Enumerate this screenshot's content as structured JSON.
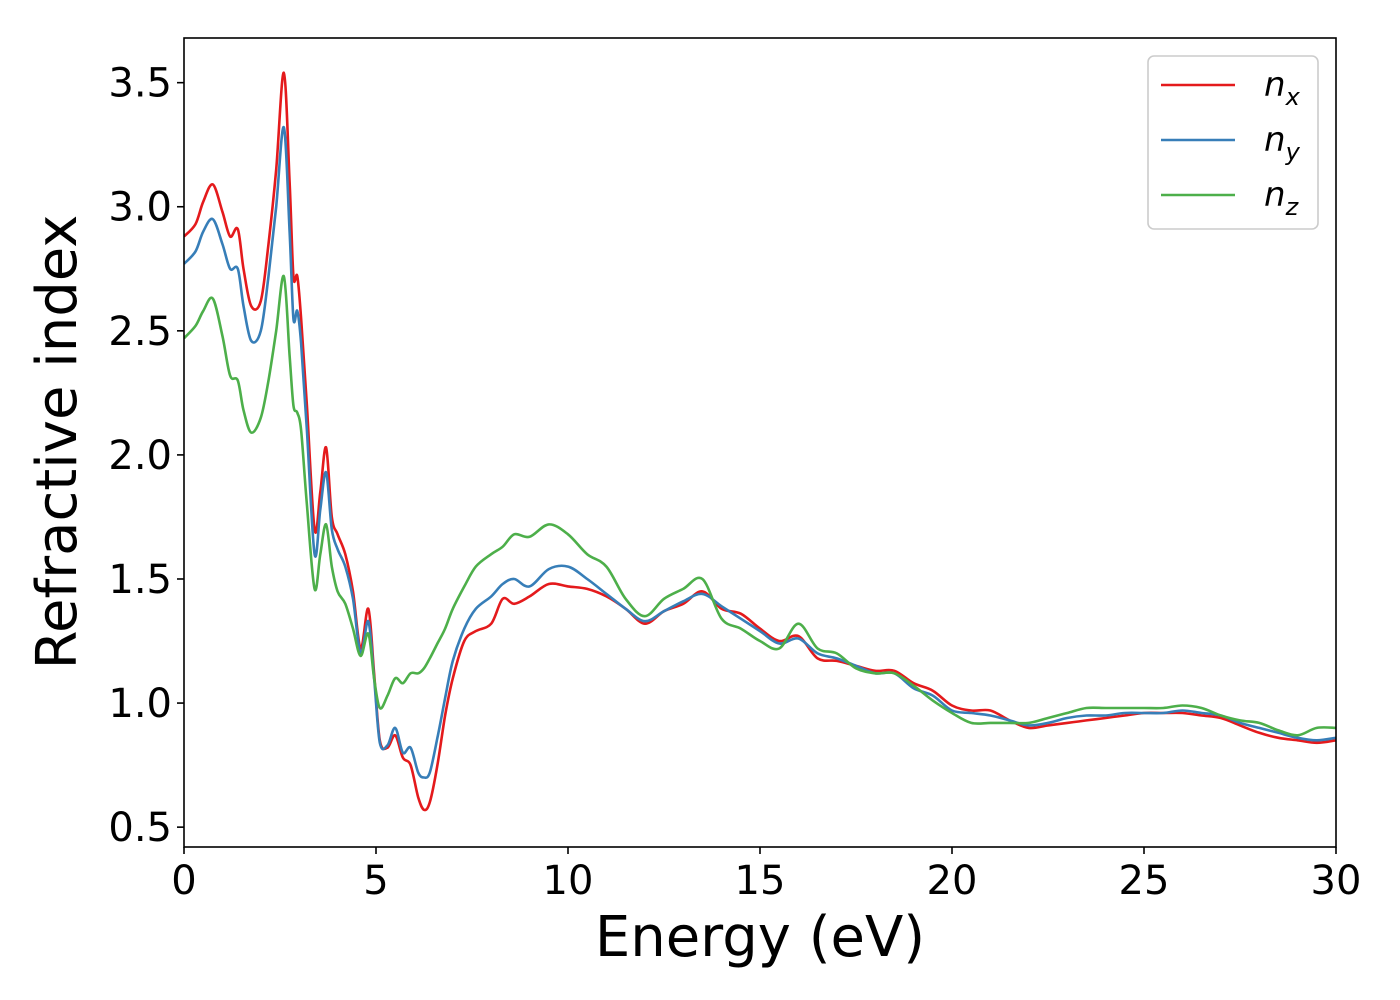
{
  "chart_data": {
    "type": "line",
    "xlabel": "Energy (eV)",
    "ylabel": "Refractive index",
    "xlim": [
      0,
      30
    ],
    "ylim": [
      0.42,
      3.68
    ],
    "xticks": [
      0,
      5,
      10,
      15,
      20,
      25,
      30
    ],
    "xtick_labels": [
      "0",
      "5",
      "10",
      "15",
      "20",
      "25",
      "30"
    ],
    "yticks": [
      0.5,
      1.0,
      1.5,
      2.0,
      2.5,
      3.0,
      3.5
    ],
    "ytick_labels": [
      "0.5",
      "1.0",
      "1.5",
      "2.0",
      "2.5",
      "3.0",
      "3.5"
    ],
    "grid": false,
    "legend_position": "top-right",
    "series": [
      {
        "name": "n_x",
        "legend_base": "n",
        "legend_sub": "x",
        "color": "#e41a1c",
        "x": [
          0,
          0.3,
          0.5,
          0.75,
          1.0,
          1.2,
          1.4,
          1.55,
          1.75,
          2.0,
          2.2,
          2.4,
          2.6,
          2.75,
          2.85,
          2.95,
          3.05,
          3.2,
          3.4,
          3.55,
          3.7,
          3.85,
          4.0,
          4.2,
          4.4,
          4.6,
          4.8,
          4.95,
          5.1,
          5.3,
          5.5,
          5.7,
          5.9,
          6.1,
          6.25,
          6.4,
          6.6,
          6.8,
          7.0,
          7.3,
          7.6,
          8.0,
          8.3,
          8.6,
          9.0,
          9.5,
          10.0,
          10.5,
          11.0,
          11.5,
          12.0,
          12.5,
          13.0,
          13.5,
          14.0,
          14.5,
          15.0,
          15.5,
          16.0,
          16.5,
          17.0,
          17.5,
          18.0,
          18.5,
          19.0,
          19.5,
          20.0,
          20.5,
          21.0,
          21.5,
          22.0,
          22.5,
          23.0,
          23.5,
          24.0,
          24.5,
          25.0,
          25.5,
          26.0,
          26.5,
          27.0,
          27.5,
          28.0,
          28.5,
          29.0,
          29.5,
          30.0
        ],
        "values": [
          2.88,
          2.93,
          3.02,
          3.09,
          2.98,
          2.88,
          2.91,
          2.75,
          2.6,
          2.62,
          2.85,
          3.15,
          3.54,
          3.1,
          2.72,
          2.72,
          2.55,
          2.2,
          1.7,
          1.85,
          2.03,
          1.75,
          1.68,
          1.6,
          1.45,
          1.22,
          1.38,
          1.12,
          0.85,
          0.82,
          0.87,
          0.78,
          0.75,
          0.62,
          0.57,
          0.6,
          0.75,
          0.95,
          1.1,
          1.25,
          1.29,
          1.32,
          1.42,
          1.4,
          1.43,
          1.48,
          1.47,
          1.46,
          1.43,
          1.38,
          1.32,
          1.37,
          1.4,
          1.45,
          1.38,
          1.36,
          1.3,
          1.25,
          1.27,
          1.18,
          1.17,
          1.15,
          1.13,
          1.13,
          1.08,
          1.05,
          0.99,
          0.97,
          0.97,
          0.93,
          0.9,
          0.91,
          0.92,
          0.93,
          0.94,
          0.95,
          0.96,
          0.96,
          0.96,
          0.95,
          0.94,
          0.91,
          0.88,
          0.86,
          0.85,
          0.84,
          0.85
        ]
      },
      {
        "name": "n_y",
        "legend_base": "n",
        "legend_sub": "y",
        "color": "#377eb8",
        "x": [
          0,
          0.3,
          0.5,
          0.75,
          1.0,
          1.2,
          1.4,
          1.55,
          1.75,
          2.0,
          2.2,
          2.4,
          2.6,
          2.75,
          2.85,
          2.95,
          3.05,
          3.2,
          3.4,
          3.55,
          3.7,
          3.85,
          4.0,
          4.2,
          4.4,
          4.6,
          4.8,
          4.95,
          5.1,
          5.3,
          5.5,
          5.7,
          5.9,
          6.1,
          6.25,
          6.4,
          6.6,
          6.8,
          7.0,
          7.3,
          7.6,
          8.0,
          8.3,
          8.6,
          9.0,
          9.5,
          10.0,
          10.5,
          11.0,
          11.5,
          12.0,
          12.5,
          13.0,
          13.5,
          14.0,
          14.5,
          15.0,
          15.5,
          16.0,
          16.5,
          17.0,
          17.5,
          18.0,
          18.5,
          19.0,
          19.5,
          20.0,
          20.5,
          21.0,
          21.5,
          22.0,
          22.5,
          23.0,
          23.5,
          24.0,
          24.5,
          25.0,
          25.5,
          26.0,
          26.5,
          27.0,
          27.5,
          28.0,
          28.5,
          29.0,
          29.5,
          30.0
        ],
        "values": [
          2.77,
          2.82,
          2.9,
          2.95,
          2.85,
          2.75,
          2.75,
          2.6,
          2.46,
          2.5,
          2.72,
          3.0,
          3.32,
          2.9,
          2.55,
          2.58,
          2.45,
          2.1,
          1.6,
          1.78,
          1.93,
          1.7,
          1.62,
          1.55,
          1.42,
          1.2,
          1.33,
          1.1,
          0.84,
          0.83,
          0.9,
          0.8,
          0.82,
          0.72,
          0.7,
          0.72,
          0.86,
          1.02,
          1.17,
          1.3,
          1.38,
          1.43,
          1.48,
          1.5,
          1.47,
          1.54,
          1.55,
          1.5,
          1.44,
          1.38,
          1.33,
          1.37,
          1.41,
          1.44,
          1.39,
          1.34,
          1.29,
          1.24,
          1.26,
          1.2,
          1.18,
          1.15,
          1.12,
          1.12,
          1.06,
          1.03,
          0.97,
          0.96,
          0.95,
          0.93,
          0.91,
          0.92,
          0.94,
          0.95,
          0.95,
          0.96,
          0.96,
          0.96,
          0.97,
          0.96,
          0.95,
          0.92,
          0.9,
          0.88,
          0.86,
          0.85,
          0.86
        ]
      },
      {
        "name": "n_z",
        "legend_base": "n",
        "legend_sub": "z",
        "color": "#4daf4a",
        "x": [
          0,
          0.3,
          0.5,
          0.75,
          1.0,
          1.2,
          1.4,
          1.55,
          1.75,
          2.0,
          2.2,
          2.4,
          2.6,
          2.75,
          2.85,
          2.95,
          3.05,
          3.2,
          3.4,
          3.55,
          3.7,
          3.85,
          4.0,
          4.2,
          4.4,
          4.6,
          4.8,
          4.95,
          5.1,
          5.3,
          5.5,
          5.7,
          5.9,
          6.1,
          6.25,
          6.4,
          6.6,
          6.8,
          7.0,
          7.3,
          7.6,
          8.0,
          8.3,
          8.6,
          9.0,
          9.5,
          10.0,
          10.5,
          11.0,
          11.5,
          12.0,
          12.5,
          13.0,
          13.5,
          14.0,
          14.5,
          15.0,
          15.5,
          16.0,
          16.5,
          17.0,
          17.5,
          18.0,
          18.5,
          19.0,
          19.5,
          20.0,
          20.5,
          21.0,
          21.5,
          22.0,
          22.5,
          23.0,
          23.5,
          24.0,
          24.5,
          25.0,
          25.5,
          26.0,
          26.5,
          27.0,
          27.5,
          28.0,
          28.5,
          29.0,
          29.5,
          30.0
        ],
        "values": [
          2.47,
          2.52,
          2.58,
          2.63,
          2.48,
          2.32,
          2.3,
          2.18,
          2.09,
          2.15,
          2.3,
          2.5,
          2.72,
          2.4,
          2.2,
          2.17,
          2.1,
          1.8,
          1.46,
          1.6,
          1.72,
          1.55,
          1.45,
          1.4,
          1.3,
          1.19,
          1.28,
          1.1,
          0.98,
          1.03,
          1.1,
          1.08,
          1.12,
          1.12,
          1.14,
          1.18,
          1.24,
          1.3,
          1.38,
          1.47,
          1.55,
          1.6,
          1.63,
          1.68,
          1.67,
          1.72,
          1.68,
          1.6,
          1.55,
          1.42,
          1.35,
          1.42,
          1.46,
          1.5,
          1.34,
          1.3,
          1.25,
          1.22,
          1.32,
          1.22,
          1.2,
          1.14,
          1.12,
          1.12,
          1.07,
          1.01,
          0.96,
          0.92,
          0.92,
          0.92,
          0.92,
          0.94,
          0.96,
          0.98,
          0.98,
          0.98,
          0.98,
          0.98,
          0.99,
          0.98,
          0.95,
          0.93,
          0.92,
          0.89,
          0.87,
          0.9,
          0.9
        ]
      }
    ]
  }
}
